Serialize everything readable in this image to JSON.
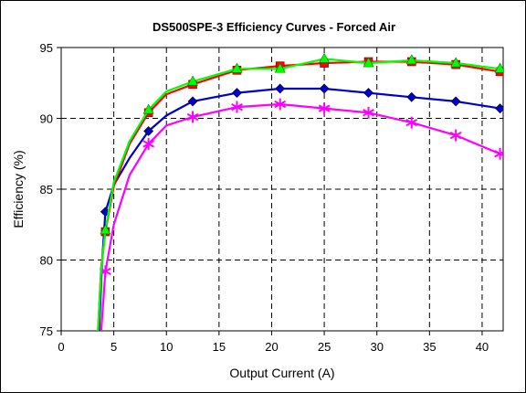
{
  "chart_data": {
    "type": "line",
    "title": "DS500SPE-3 Efficiency Curves - Forced Air",
    "xlabel": "Output Current (A)",
    "ylabel": "Efficiency (%)",
    "xlim": [
      0,
      42
    ],
    "ylim": [
      75,
      95
    ],
    "xticks": [
      "0",
      "5",
      "10",
      "15",
      "20",
      "25",
      "30",
      "35",
      "40"
    ],
    "yticks": [
      "75",
      "80",
      "85",
      "90",
      "95"
    ],
    "xtick_values": [
      0,
      5,
      10,
      15,
      20,
      25,
      30,
      35,
      40
    ],
    "ytick_values": [
      75,
      80,
      85,
      90,
      95
    ],
    "grid": true,
    "legend": "none",
    "series": [
      {
        "color": "#0000cc",
        "marker": "diamond",
        "line": [
          [
            3.6,
            75
          ],
          [
            3.9,
            80
          ],
          [
            4.2,
            83.4
          ],
          [
            5,
            85.3
          ],
          [
            6.5,
            87.2
          ],
          [
            8.3,
            89.1
          ],
          [
            10,
            90.2
          ],
          [
            12.5,
            91.2
          ],
          [
            16.7,
            91.8
          ],
          [
            20.8,
            92.1
          ],
          [
            25,
            92.1
          ],
          [
            29.2,
            91.8
          ],
          [
            33.3,
            91.5
          ],
          [
            37.5,
            91.2
          ],
          [
            41.7,
            90.7
          ]
        ],
        "markers": [
          [
            4.2,
            83.4
          ],
          [
            8.3,
            89.1
          ],
          [
            12.5,
            91.2
          ],
          [
            16.7,
            91.8
          ],
          [
            20.8,
            92.1
          ],
          [
            25,
            92.1
          ],
          [
            29.2,
            91.8
          ],
          [
            33.3,
            91.5
          ],
          [
            37.5,
            91.2
          ],
          [
            41.7,
            90.7
          ]
        ]
      },
      {
        "color": "#ff00ff",
        "marker": "asterisk",
        "line": [
          [
            3.8,
            75
          ],
          [
            4.2,
            79.2
          ],
          [
            5,
            82.5
          ],
          [
            6.5,
            86
          ],
          [
            8.3,
            88.2
          ],
          [
            10,
            89.5
          ],
          [
            12.5,
            90.1
          ],
          [
            16.7,
            90.8
          ],
          [
            20.8,
            91
          ],
          [
            25,
            90.7
          ],
          [
            29.2,
            90.4
          ],
          [
            33.3,
            89.7
          ],
          [
            37.5,
            88.8
          ],
          [
            41.7,
            87.5
          ]
        ],
        "markers": [
          [
            4.2,
            79.2
          ],
          [
            8.3,
            88.2
          ],
          [
            12.5,
            90.1
          ],
          [
            16.7,
            90.8
          ],
          [
            20.8,
            91
          ],
          [
            25,
            90.7
          ],
          [
            29.2,
            90.4
          ],
          [
            33.3,
            89.7
          ],
          [
            37.5,
            88.8
          ],
          [
            41.7,
            87.5
          ]
        ]
      },
      {
        "color": "#ff0000",
        "marker": "square",
        "line": [
          [
            3.5,
            75
          ],
          [
            3.8,
            79.5
          ],
          [
            4.2,
            82
          ],
          [
            5,
            85.2
          ],
          [
            6.5,
            88.2
          ],
          [
            8.3,
            90.4
          ],
          [
            10,
            91.7
          ],
          [
            12.5,
            92.4
          ],
          [
            16.7,
            93.4
          ],
          [
            20.8,
            93.7
          ],
          [
            25,
            93.9
          ],
          [
            29.2,
            94
          ],
          [
            33.3,
            94
          ],
          [
            37.5,
            93.8
          ],
          [
            41.7,
            93.3
          ]
        ],
        "markers": [
          [
            4.2,
            82
          ],
          [
            8.3,
            90.4
          ],
          [
            12.5,
            92.4
          ],
          [
            16.7,
            93.4
          ],
          [
            20.8,
            93.7
          ],
          [
            25,
            93.9
          ],
          [
            29.2,
            94
          ],
          [
            33.3,
            94
          ],
          [
            37.5,
            93.8
          ],
          [
            41.7,
            93.3
          ]
        ]
      },
      {
        "color": "#00ff00",
        "marker": "triangle",
        "line": [
          [
            3.5,
            75
          ],
          [
            3.8,
            79.3
          ],
          [
            4.2,
            82.1
          ],
          [
            5,
            85.5
          ],
          [
            6.5,
            88.4
          ],
          [
            8.3,
            90.6
          ],
          [
            10,
            91.9
          ],
          [
            12.5,
            92.6
          ],
          [
            16.7,
            93.5
          ],
          [
            20.8,
            93.5
          ],
          [
            25,
            94.2
          ],
          [
            29.2,
            93.9
          ],
          [
            33.3,
            94.1
          ],
          [
            37.5,
            93.9
          ],
          [
            41.7,
            93.5
          ]
        ],
        "markers": [
          [
            4.2,
            82.1
          ],
          [
            8.3,
            90.6
          ],
          [
            12.5,
            92.6
          ],
          [
            16.7,
            93.5
          ],
          [
            20.8,
            93.5
          ],
          [
            25,
            94.2
          ],
          [
            29.2,
            93.9
          ],
          [
            33.3,
            94.1
          ],
          [
            37.5,
            93.9
          ],
          [
            41.7,
            93.5
          ]
        ]
      }
    ]
  }
}
